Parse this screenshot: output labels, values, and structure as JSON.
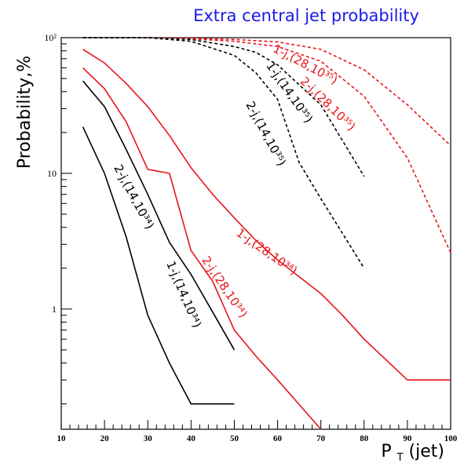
{
  "chart_data": {
    "type": "line",
    "title": "Extra central jet probability",
    "xlabel": "P_T (jet)",
    "ylabel": "Probability,%",
    "xlim": [
      10,
      100
    ],
    "ylim": [
      0.13,
      100
    ],
    "yscale": "log",
    "grid": false,
    "x_ticks": [
      10,
      20,
      30,
      40,
      50,
      60,
      70,
      80,
      90,
      100
    ],
    "y_ticks": [
      {
        "value": 1,
        "label": "1"
      },
      {
        "value": 10,
        "label": "10"
      },
      {
        "value": 100,
        "label": "10²"
      }
    ],
    "series": [
      {
        "label": "1-j,(28,10³⁵)",
        "color": "#e8141a",
        "dash": true,
        "x": [
          15,
          20,
          30,
          40,
          50,
          60,
          70,
          80,
          90,
          100
        ],
        "y": [
          100,
          100,
          100,
          99,
          97,
          93,
          82,
          58,
          32,
          16
        ],
        "label_pos": {
          "x": 66,
          "y": 60,
          "angle": 28
        }
      },
      {
        "label": "2-j,(28,10³⁵)",
        "color": "#e8141a",
        "dash": true,
        "x": [
          15,
          20,
          30,
          40,
          50,
          60,
          70,
          80,
          90,
          100
        ],
        "y": [
          100,
          100,
          100,
          98,
          94,
          86,
          67,
          37,
          13,
          2.6
        ],
        "label_pos": {
          "x": 71,
          "y": 31,
          "angle": 44
        }
      },
      {
        "label": "1-j,(14,10³⁵)",
        "color": "#000000",
        "dash": true,
        "x": [
          15,
          20,
          30,
          40,
          50,
          55,
          60,
          70,
          80
        ],
        "y": [
          100,
          100,
          100,
          97,
          86,
          78,
          63,
          32,
          9.5
        ],
        "label_pos": {
          "x": 62,
          "y": 38,
          "angle": 55
        }
      },
      {
        "label": "2-j,(14,10³⁵)",
        "color": "#000000",
        "dash": true,
        "x": [
          15,
          20,
          30,
          40,
          50,
          55,
          60,
          65,
          70,
          80
        ],
        "y": [
          100,
          100,
          100,
          94,
          74,
          55,
          35,
          12,
          6.5,
          2
        ],
        "label_pos": {
          "x": 56.5,
          "y": 19,
          "angle": 62
        }
      },
      {
        "label": "1-j,(28,10³⁴)",
        "color": "#e8141a",
        "dash": false,
        "x": [
          15,
          20,
          25,
          30,
          35,
          40,
          45,
          50,
          55,
          60,
          70,
          75,
          80,
          90,
          100
        ],
        "y": [
          82,
          65,
          46,
          31,
          19,
          11,
          7,
          4.7,
          3.2,
          2.3,
          1.3,
          0.9,
          0.6,
          0.3,
          0.3
        ],
        "label_pos": {
          "x": 57,
          "y": 2.5,
          "angle": 35
        }
      },
      {
        "label": "2-j,(28,10³⁴)",
        "color": "#e8141a",
        "dash": false,
        "x": [
          15,
          20,
          25,
          30,
          35,
          40,
          45,
          50,
          55,
          60,
          70
        ],
        "y": [
          60,
          42,
          24,
          10.7,
          10,
          2.7,
          1.6,
          0.7,
          0.45,
          0.3,
          0.13
        ],
        "label_pos": {
          "x": 47,
          "y": 1.4,
          "angle": 56
        }
      },
      {
        "label": "1-j,(14,10³⁴)",
        "color": "#000000",
        "dash": false,
        "x": [
          15,
          20,
          25,
          30,
          35,
          40,
          45,
          50
        ],
        "y": [
          48,
          31,
          15,
          7,
          3.1,
          1.8,
          0.95,
          0.5
        ],
        "label_pos": {
          "x": 37.5,
          "y": 1.25,
          "angle": 67
        }
      },
      {
        "label": "2-j,(14,10³⁴)",
        "color": "#000000",
        "dash": false,
        "x": [
          15,
          20,
          25,
          30,
          35,
          40,
          50
        ],
        "y": [
          22,
          10,
          3.4,
          0.9,
          0.4,
          0.2,
          0.2
        ],
        "label_pos": {
          "x": 26,
          "y": 6.5,
          "angle": 62
        }
      }
    ]
  }
}
